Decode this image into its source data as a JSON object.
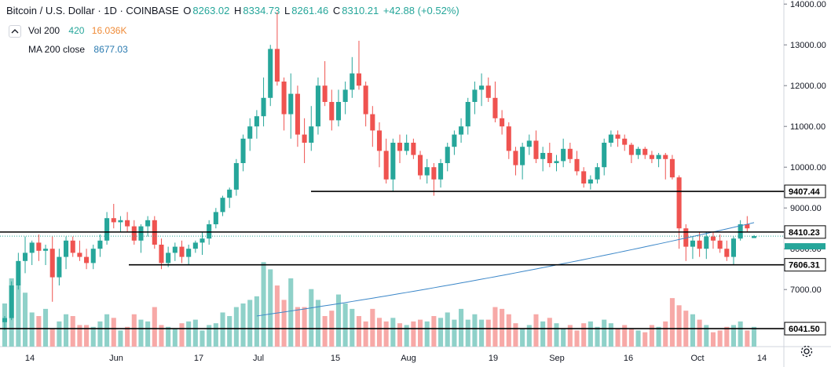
{
  "header": {
    "title": "Bitcoin / U.S. Dollar · 1D · COINBASE",
    "o_label": "O",
    "o": "8263.02",
    "h_label": "H",
    "h": "8334.73",
    "l_label": "L",
    "l": "8261.46",
    "c_label": "C",
    "c": "8310.21",
    "change": "+42.88 (+0.52%)"
  },
  "volume": {
    "label": "Vol 200",
    "value1": "420",
    "value2": "16.036K"
  },
  "ma": {
    "label": "MA 200 close",
    "value": "8677.03"
  },
  "colors": {
    "up": "#26a69a",
    "down": "#ef5350",
    "ma": "#2962ff",
    "vol_up": "#8fd1c9",
    "vol_down": "#f7a9a7"
  },
  "chart_data": {
    "type": "candlestick",
    "y_axis": {
      "ticks": [
        7000,
        8000,
        9000,
        10000,
        11000,
        12000,
        13000,
        14000
      ],
      "tick_labels": [
        "7000.00",
        "8000.00",
        "9000.00",
        "10000.00",
        "11000.00",
        "12000.00",
        "13000.00",
        "14000.00"
      ],
      "range": [
        5600,
        14100
      ]
    },
    "x_axis": {
      "labels": [
        "14",
        "Jun",
        "17",
        "Jul",
        "15",
        "Aug",
        "19",
        "Sep",
        "16",
        "Oct",
        "14"
      ]
    },
    "horizontal_levels": [
      9407.44,
      8410.23,
      7606.31,
      6041.5
    ],
    "price_labels": [
      "9407.44",
      "8410.23",
      "7606.31",
      "6041.50"
    ],
    "candles": [
      [
        6200,
        6350,
        6000,
        6300
      ],
      [
        6300,
        7200,
        6250,
        7100
      ],
      [
        7100,
        7900,
        7000,
        7700
      ],
      [
        7700,
        8300,
        7400,
        7900
      ],
      [
        7900,
        8200,
        7600,
        8150
      ],
      [
        8150,
        8350,
        7700,
        7950
      ],
      [
        7950,
        8100,
        7600,
        8000
      ],
      [
        8000,
        8300,
        6700,
        7300
      ],
      [
        7300,
        8000,
        7100,
        7800
      ],
      [
        7800,
        8300,
        7500,
        8200
      ],
      [
        8200,
        8300,
        7800,
        7900
      ],
      [
        7900,
        8200,
        7700,
        7800
      ],
      [
        7800,
        8000,
        7500,
        7650
      ],
      [
        7650,
        8100,
        7500,
        8000
      ],
      [
        8000,
        8350,
        7800,
        8200
      ],
      [
        8200,
        8900,
        8100,
        8750
      ],
      [
        8750,
        9100,
        8500,
        8650
      ],
      [
        8650,
        8800,
        8400,
        8700
      ],
      [
        8700,
        8900,
        8400,
        8550
      ],
      [
        8550,
        8700,
        8100,
        8200
      ],
      [
        8200,
        8600,
        7900,
        8550
      ],
      [
        8550,
        8800,
        8300,
        8700
      ],
      [
        8700,
        8800,
        8000,
        8100
      ],
      [
        8100,
        8250,
        7500,
        7650
      ],
      [
        7650,
        8050,
        7550,
        7900
      ],
      [
        7900,
        8150,
        7700,
        8050
      ],
      [
        8050,
        8200,
        7650,
        7800
      ],
      [
        7800,
        8100,
        7600,
        8000
      ],
      [
        8000,
        8200,
        7900,
        8150
      ],
      [
        8150,
        8400,
        7850,
        8250
      ],
      [
        8250,
        8700,
        8100,
        8600
      ],
      [
        8600,
        9000,
        8500,
        8900
      ],
      [
        8900,
        9300,
        8800,
        9250
      ],
      [
        9250,
        9500,
        9000,
        9450
      ],
      [
        9450,
        10200,
        9300,
        10100
      ],
      [
        10100,
        10800,
        9900,
        10700
      ],
      [
        10700,
        11200,
        10400,
        11000
      ],
      [
        11000,
        11400,
        10700,
        11250
      ],
      [
        11250,
        12200,
        11000,
        11700
      ],
      [
        11700,
        13000,
        11500,
        12900
      ],
      [
        12900,
        13800,
        12000,
        12100
      ],
      [
        12100,
        12200,
        10900,
        11300
      ],
      [
        11300,
        12300,
        10700,
        11800
      ],
      [
        11800,
        12000,
        10500,
        10800
      ],
      [
        10800,
        11200,
        10100,
        10600
      ],
      [
        10600,
        11500,
        10400,
        11000
      ],
      [
        11000,
        12200,
        10800,
        12000
      ],
      [
        12000,
        12600,
        11500,
        11600
      ],
      [
        11600,
        11900,
        10900,
        11150
      ],
      [
        11150,
        11900,
        11000,
        11600
      ],
      [
        11600,
        12100,
        11300,
        11900
      ],
      [
        11900,
        12700,
        11700,
        12300
      ],
      [
        12300,
        13100,
        11900,
        12000
      ],
      [
        12000,
        12100,
        11000,
        11300
      ],
      [
        11300,
        11500,
        10500,
        10900
      ],
      [
        10900,
        11100,
        10000,
        10400
      ],
      [
        10400,
        10700,
        9600,
        9700
      ],
      [
        9700,
        10700,
        9400,
        10600
      ],
      [
        10600,
        10800,
        10100,
        10400
      ],
      [
        10400,
        10800,
        10300,
        10600
      ],
      [
        10600,
        10700,
        10200,
        10300
      ],
      [
        10300,
        10400,
        9700,
        9800
      ],
      [
        9800,
        10200,
        9600,
        10000
      ],
      [
        10000,
        10100,
        9300,
        9700
      ],
      [
        9700,
        10200,
        9500,
        10100
      ],
      [
        10100,
        10600,
        9900,
        10500
      ],
      [
        10500,
        10900,
        10300,
        10800
      ],
      [
        10800,
        11200,
        10600,
        11000
      ],
      [
        11000,
        11700,
        10800,
        11600
      ],
      [
        11600,
        12100,
        11300,
        11900
      ],
      [
        11900,
        12300,
        11500,
        12000
      ],
      [
        12000,
        12200,
        11600,
        11700
      ],
      [
        11700,
        12100,
        11100,
        11200
      ],
      [
        11200,
        11400,
        10800,
        11000
      ],
      [
        11000,
        11100,
        10200,
        10400
      ],
      [
        10400,
        10500,
        9800,
        10050
      ],
      [
        10050,
        10600,
        9700,
        10500
      ],
      [
        10500,
        10800,
        10300,
        10650
      ],
      [
        10650,
        10900,
        10100,
        10200
      ],
      [
        10200,
        10500,
        9900,
        10350
      ],
      [
        10350,
        10600,
        10000,
        10100
      ],
      [
        10100,
        10300,
        9900,
        10150
      ],
      [
        10150,
        10700,
        10000,
        10450
      ],
      [
        10450,
        10600,
        10100,
        10200
      ],
      [
        10200,
        10400,
        9800,
        9900
      ],
      [
        9900,
        10000,
        9500,
        9600
      ],
      [
        9600,
        9800,
        9450,
        9700
      ],
      [
        9700,
        10100,
        9600,
        10000
      ],
      [
        10000,
        10700,
        9800,
        10600
      ],
      [
        10600,
        10900,
        10500,
        10800
      ],
      [
        10800,
        10900,
        10500,
        10700
      ],
      [
        10700,
        10800,
        10400,
        10550
      ],
      [
        10550,
        10600,
        10100,
        10300
      ],
      [
        10300,
        10500,
        10200,
        10450
      ],
      [
        10450,
        10500,
        10200,
        10300
      ],
      [
        10300,
        10400,
        10100,
        10200
      ],
      [
        10200,
        10350,
        10000,
        10300
      ],
      [
        10300,
        10350,
        9700,
        10200
      ],
      [
        10200,
        10300,
        9700,
        9750
      ],
      [
        9750,
        9800,
        8000,
        8500
      ],
      [
        8500,
        8600,
        7700,
        8050
      ],
      [
        8050,
        8300,
        7750,
        8200
      ],
      [
        8200,
        8400,
        7800,
        8000
      ],
      [
        8000,
        8400,
        7750,
        8300
      ],
      [
        8300,
        8400,
        8000,
        8200
      ],
      [
        8200,
        8350,
        7900,
        8000
      ],
      [
        8000,
        8200,
        7700,
        7800
      ],
      [
        7800,
        8300,
        7600,
        8250
      ],
      [
        8250,
        8700,
        8200,
        8600
      ],
      [
        8600,
        8800,
        8400,
        8500
      ],
      [
        8263,
        8335,
        8261,
        8310
      ]
    ],
    "volume": [
      120,
      190,
      170,
      150,
      95,
      85,
      105,
      50,
      70,
      90,
      85,
      60,
      60,
      55,
      70,
      90,
      80,
      45,
      55,
      90,
      75,
      70,
      110,
      60,
      55,
      50,
      65,
      70,
      75,
      45,
      60,
      65,
      95,
      85,
      110,
      120,
      130,
      140,
      235,
      215,
      170,
      130,
      190,
      110,
      110,
      160,
      130,
      85,
      100,
      145,
      120,
      105,
      85,
      70,
      105,
      80,
      70,
      80,
      65,
      60,
      70,
      75,
      70,
      85,
      80,
      95,
      75,
      105,
      75,
      90,
      75,
      75,
      110,
      105,
      90,
      65,
      50,
      60,
      90,
      70,
      80,
      65,
      50,
      60,
      45,
      65,
      70,
      55,
      75,
      65,
      50,
      60,
      50,
      45,
      40,
      60,
      55,
      70,
      135,
      115,
      100,
      90,
      75,
      60,
      40,
      45,
      55,
      60,
      70,
      45,
      55
    ]
  }
}
